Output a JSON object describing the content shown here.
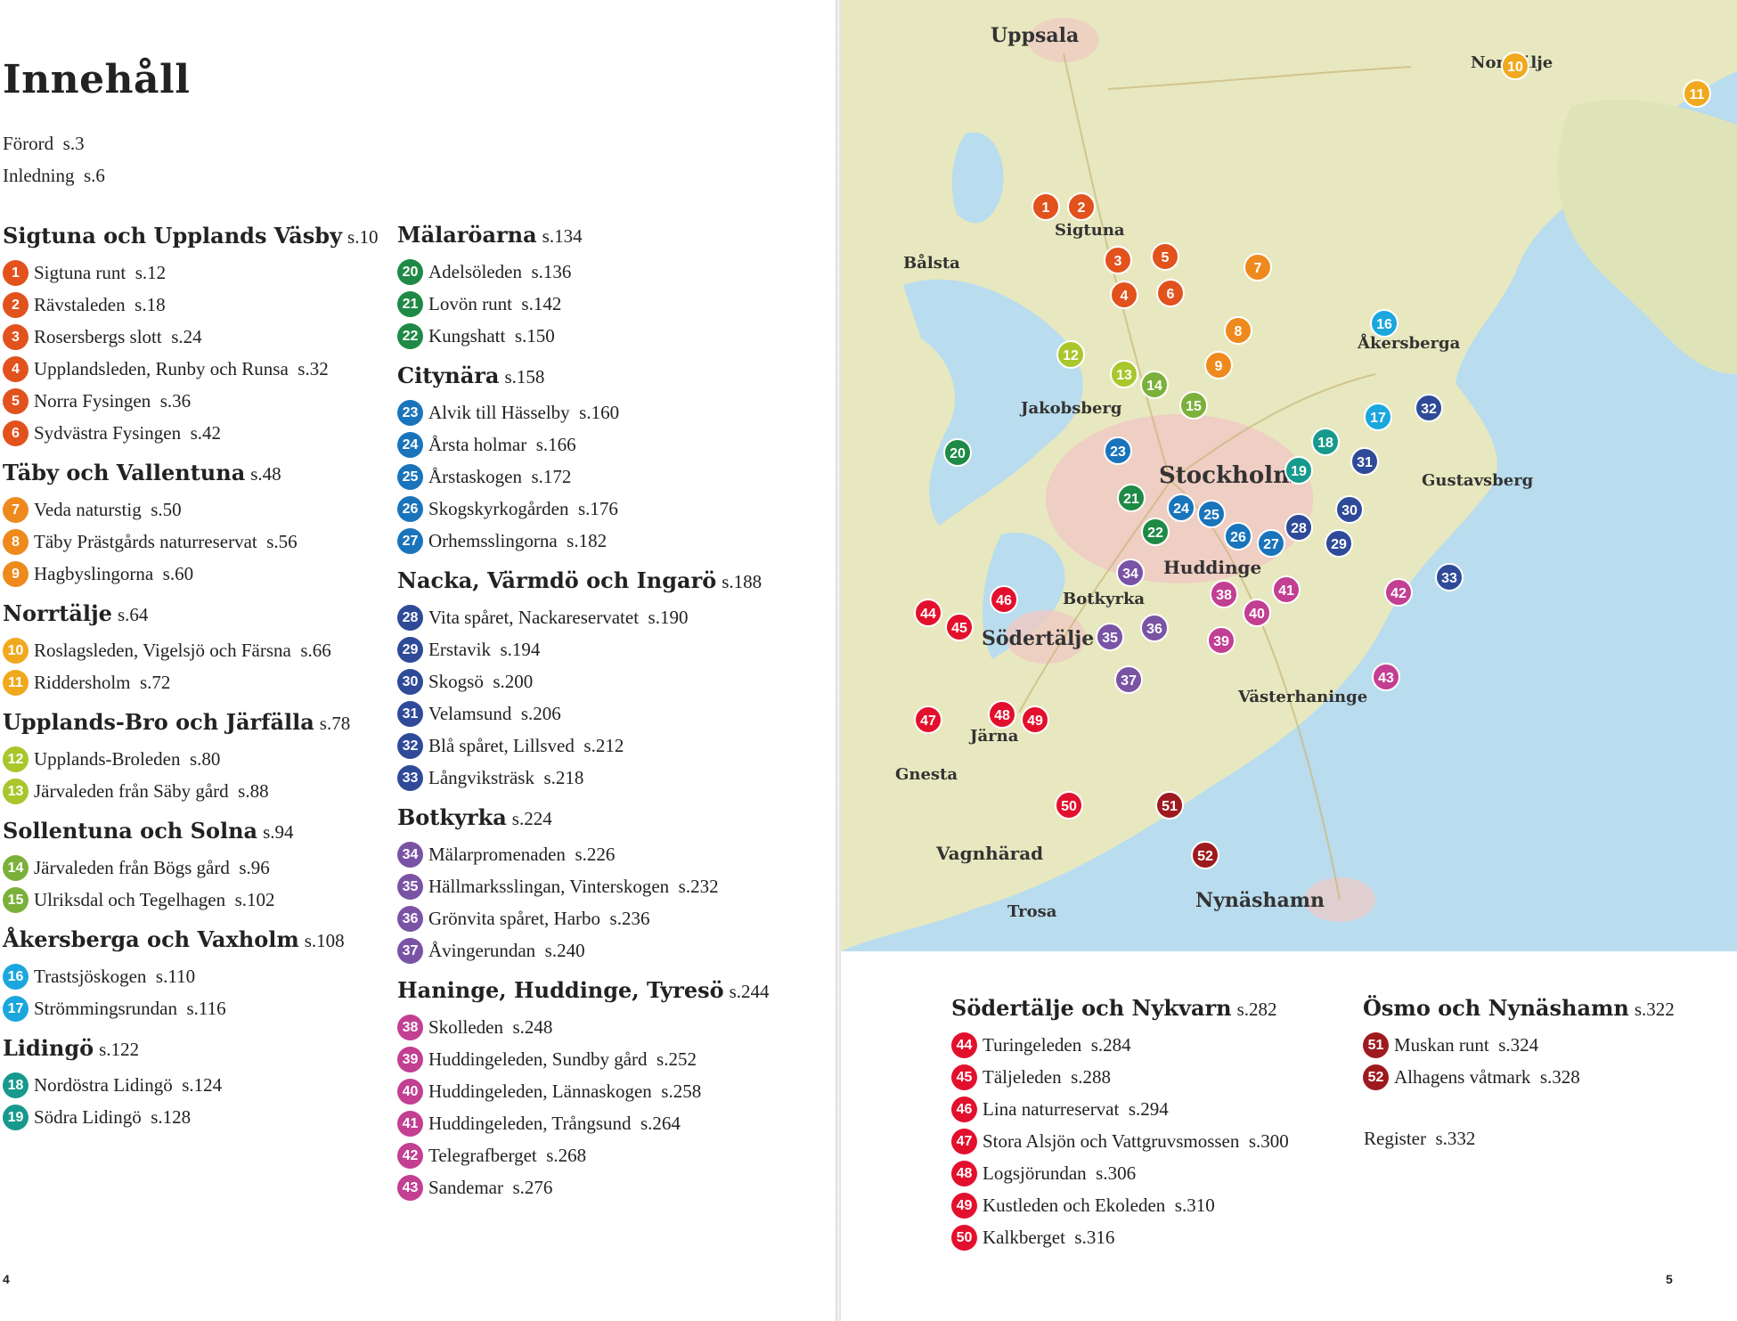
{
  "title": "Innehåll",
  "intro": [
    {
      "label": "Förord",
      "page": "s.3"
    },
    {
      "label": "Inledning",
      "page": "s.6"
    }
  ],
  "colors": {
    "sigtuna": "#e2521d",
    "taby": "#ee8a1d",
    "norrtalje": "#f0a91e",
    "upplandsbro": "#a9c62b",
    "sollentuna": "#7bb03a",
    "akersberga": "#1ba7dd",
    "lidingo": "#179a8d",
    "malaroarna": "#1e8a45",
    "citynara": "#1a74bb",
    "nacka": "#2e4a98",
    "botkyrka": "#7a53a5",
    "haninge": "#c23f92",
    "sodertalje": "#e3102d",
    "osmo": "#9e1a1e"
  },
  "columns": [
    [
      {
        "title": "Sigtuna och Upplands Väsby",
        "page": "s.10",
        "color": "#e2521d",
        "items": [
          {
            "n": "1",
            "label": "Sigtuna runt",
            "page": "s.12"
          },
          {
            "n": "2",
            "label": "Rävstaleden",
            "page": "s.18"
          },
          {
            "n": "3",
            "label": "Rosersbergs slott",
            "page": "s.24"
          },
          {
            "n": "4",
            "label": "Upplandsleden, Runby och Runsa",
            "page": "s.32"
          },
          {
            "n": "5",
            "label": "Norra Fysingen",
            "page": "s.36"
          },
          {
            "n": "6",
            "label": "Sydvästra Fysingen",
            "page": "s.42"
          }
        ]
      },
      {
        "title": "Täby och Vallentuna",
        "page": "s.48",
        "color": "#ee8a1d",
        "items": [
          {
            "n": "7",
            "label": "Veda naturstig",
            "page": "s.50"
          },
          {
            "n": "8",
            "label": "Täby Prästgårds naturreservat",
            "page": "s.56"
          },
          {
            "n": "9",
            "label": "Hagbyslingorna",
            "page": "s.60"
          }
        ]
      },
      {
        "title": "Norrtälje",
        "page": "s.64",
        "color": "#f0a91e",
        "items": [
          {
            "n": "10",
            "label": "Roslagsleden, Vigelsjö och Färsna",
            "page": "s.66"
          },
          {
            "n": "11",
            "label": "Riddersholm",
            "page": "s.72"
          }
        ]
      },
      {
        "title": "Upplands-Bro och Järfälla",
        "page": "s.78",
        "color": "#a9c62b",
        "items": [
          {
            "n": "12",
            "label": "Upplands-Broleden",
            "page": "s.80"
          },
          {
            "n": "13",
            "label": "Järvaleden från Säby gård",
            "page": "s.88"
          }
        ]
      },
      {
        "title": "Sollentuna och Solna",
        "page": "s.94",
        "color": "#7bb03a",
        "items": [
          {
            "n": "14",
            "label": "Järvaleden från Bögs gård",
            "page": "s.96"
          },
          {
            "n": "15",
            "label": "Ulriksdal och Tegelhagen",
            "page": "s.102"
          }
        ]
      },
      {
        "title": "Åkersberga och Vaxholm",
        "page": "s.108",
        "color": "#1ba7dd",
        "items": [
          {
            "n": "16",
            "label": "Trastsjöskogen",
            "page": "s.110"
          },
          {
            "n": "17",
            "label": "Strömmingsrundan",
            "page": "s.116"
          }
        ]
      },
      {
        "title": "Lidingö",
        "page": "s.122",
        "color": "#179a8d",
        "items": [
          {
            "n": "18",
            "label": "Nordöstra Lidingö",
            "page": "s.124"
          },
          {
            "n": "19",
            "label": "Södra Lidingö",
            "page": "s.128"
          }
        ]
      }
    ],
    [
      {
        "title": "Mälaröarna",
        "page": "s.134",
        "color": "#1e8a45",
        "items": [
          {
            "n": "20",
            "label": "Adelsöleden",
            "page": "s.136"
          },
          {
            "n": "21",
            "label": "Lovön runt",
            "page": "s.142"
          },
          {
            "n": "22",
            "label": "Kungshatt",
            "page": "s.150"
          }
        ]
      },
      {
        "title": "Citynära",
        "page": "s.158",
        "color": "#1a74bb",
        "items": [
          {
            "n": "23",
            "label": "Alvik till Hässelby",
            "page": "s.160"
          },
          {
            "n": "24",
            "label": "Årsta holmar",
            "page": "s.166"
          },
          {
            "n": "25",
            "label": "Årstaskogen",
            "page": "s.172"
          },
          {
            "n": "26",
            "label": "Skogskyrkogården",
            "page": "s.176"
          },
          {
            "n": "27",
            "label": "Orhemsslingorna",
            "page": "s.182"
          }
        ]
      },
      {
        "title": "Nacka, Värmdö och Ingarö",
        "page": "s.188",
        "color": "#2e4a98",
        "items": [
          {
            "n": "28",
            "label": "Vita spåret, Nackareservatet",
            "page": "s.190"
          },
          {
            "n": "29",
            "label": "Erstavik",
            "page": "s.194"
          },
          {
            "n": "30",
            "label": "Skogsö",
            "page": "s.200"
          },
          {
            "n": "31",
            "label": "Velamsund",
            "page": "s.206"
          },
          {
            "n": "32",
            "label": "Blå spåret, Lillsved",
            "page": "s.212"
          },
          {
            "n": "33",
            "label": "Långviksträsk",
            "page": "s.218"
          }
        ]
      },
      {
        "title": "Botkyrka",
        "page": "s.224",
        "color": "#7a53a5",
        "items": [
          {
            "n": "34",
            "label": "Mälarpromenaden",
            "page": "s.226"
          },
          {
            "n": "35",
            "label": "Hällmarksslingan, Vinterskogen",
            "page": "s.232"
          },
          {
            "n": "36",
            "label": "Grönvita spåret, Harbo",
            "page": "s.236"
          },
          {
            "n": "37",
            "label": "Åvingerundan",
            "page": "s.240"
          }
        ]
      },
      {
        "title": "Haninge, Huddinge, Tyresö",
        "page": "s.244",
        "color": "#c23f92",
        "items": [
          {
            "n": "38",
            "label": "Skolleden",
            "page": "s.248"
          },
          {
            "n": "39",
            "label": "Huddingeleden, Sundby gård",
            "page": "s.252"
          },
          {
            "n": "40",
            "label": "Huddingeleden, Lännaskogen",
            "page": "s.258"
          },
          {
            "n": "41",
            "label": "Huddingeleden, Trångsund",
            "page": "s.264"
          },
          {
            "n": "42",
            "label": "Telegrafberget",
            "page": "s.268"
          },
          {
            "n": "43",
            "label": "Sandemar",
            "page": "s.276"
          }
        ]
      }
    ],
    [
      {
        "title": "Södertälje och Nykvarn",
        "page": "s.282",
        "color": "#e3102d",
        "items": [
          {
            "n": "44",
            "label": "Turingeleden",
            "page": "s.284"
          },
          {
            "n": "45",
            "label": "Täljeleden",
            "page": "s.288"
          },
          {
            "n": "46",
            "label": "Lina naturreservat",
            "page": "s.294"
          },
          {
            "n": "47",
            "label": "Stora Alsjön och Vattgruvsmossen",
            "page": "s.300"
          },
          {
            "n": "48",
            "label": "Logsjörundan",
            "page": "s.306"
          },
          {
            "n": "49",
            "label": "Kustleden och Ekoleden",
            "page": "s.310"
          },
          {
            "n": "50",
            "label": "Kalkberget",
            "page": "s.316"
          }
        ]
      }
    ],
    [
      {
        "title": "Ösmo och Nynäshamn",
        "page": "s.322",
        "color": "#9e1a1e",
        "items": [
          {
            "n": "51",
            "label": "Muskan runt",
            "page": "s.324"
          },
          {
            "n": "52",
            "label": "Alhagens våtmark",
            "page": "s.328"
          }
        ]
      }
    ]
  ],
  "register": {
    "label": "Register",
    "page": "s.332"
  },
  "page_numbers": {
    "left": "4",
    "right": "5"
  },
  "map": {
    "towns": [
      "Uppsala",
      "Norrtälje",
      "Sigtuna",
      "Bålsta",
      "Åkersberga",
      "Jakobsberg",
      "Stockholm",
      "Gustavsberg",
      "Huddinge",
      "Botkyrka",
      "Södertälje",
      "Västerhaninge",
      "Järna",
      "Gnesta",
      "Vagnhärad",
      "Trosa",
      "Nynäshamn"
    ],
    "markers": [
      {
        "n": "1",
        "color": "#e2521d"
      },
      {
        "n": "2",
        "color": "#e2521d"
      },
      {
        "n": "3",
        "color": "#e2521d"
      },
      {
        "n": "4",
        "color": "#e2521d"
      },
      {
        "n": "5",
        "color": "#e2521d"
      },
      {
        "n": "6",
        "color": "#e2521d"
      },
      {
        "n": "7",
        "color": "#ee8a1d"
      },
      {
        "n": "8",
        "color": "#ee8a1d"
      },
      {
        "n": "9",
        "color": "#ee8a1d"
      },
      {
        "n": "10",
        "color": "#f0a91e"
      },
      {
        "n": "11",
        "color": "#f0a91e"
      },
      {
        "n": "12",
        "color": "#a9c62b"
      },
      {
        "n": "13",
        "color": "#a9c62b"
      },
      {
        "n": "14",
        "color": "#7bb03a"
      },
      {
        "n": "15",
        "color": "#7bb03a"
      },
      {
        "n": "16",
        "color": "#1ba7dd"
      },
      {
        "n": "17",
        "color": "#1ba7dd"
      },
      {
        "n": "18",
        "color": "#179a8d"
      },
      {
        "n": "19",
        "color": "#179a8d"
      },
      {
        "n": "20",
        "color": "#1e8a45"
      },
      {
        "n": "21",
        "color": "#1e8a45"
      },
      {
        "n": "22",
        "color": "#1e8a45"
      },
      {
        "n": "23",
        "color": "#1a74bb"
      },
      {
        "n": "24",
        "color": "#1a74bb"
      },
      {
        "n": "25",
        "color": "#1a74bb"
      },
      {
        "n": "26",
        "color": "#1a74bb"
      },
      {
        "n": "27",
        "color": "#1a74bb"
      },
      {
        "n": "28",
        "color": "#2e4a98"
      },
      {
        "n": "29",
        "color": "#2e4a98"
      },
      {
        "n": "30",
        "color": "#2e4a98"
      },
      {
        "n": "31",
        "color": "#2e4a98"
      },
      {
        "n": "32",
        "color": "#2e4a98"
      },
      {
        "n": "33",
        "color": "#2e4a98"
      },
      {
        "n": "34",
        "color": "#7a53a5"
      },
      {
        "n": "35",
        "color": "#7a53a5"
      },
      {
        "n": "36",
        "color": "#7a53a5"
      },
      {
        "n": "37",
        "color": "#7a53a5"
      },
      {
        "n": "38",
        "color": "#c23f92"
      },
      {
        "n": "39",
        "color": "#c23f92"
      },
      {
        "n": "40",
        "color": "#c23f92"
      },
      {
        "n": "41",
        "color": "#c23f92"
      },
      {
        "n": "42",
        "color": "#c23f92"
      },
      {
        "n": "43",
        "color": "#c23f92"
      },
      {
        "n": "44",
        "color": "#e3102d"
      },
      {
        "n": "45",
        "color": "#e3102d"
      },
      {
        "n": "46",
        "color": "#e3102d"
      },
      {
        "n": "47",
        "color": "#e3102d"
      },
      {
        "n": "48",
        "color": "#e3102d"
      },
      {
        "n": "49",
        "color": "#e3102d"
      },
      {
        "n": "50",
        "color": "#e3102d"
      },
      {
        "n": "51",
        "color": "#9e1a1e"
      },
      {
        "n": "52",
        "color": "#9e1a1e"
      }
    ]
  }
}
